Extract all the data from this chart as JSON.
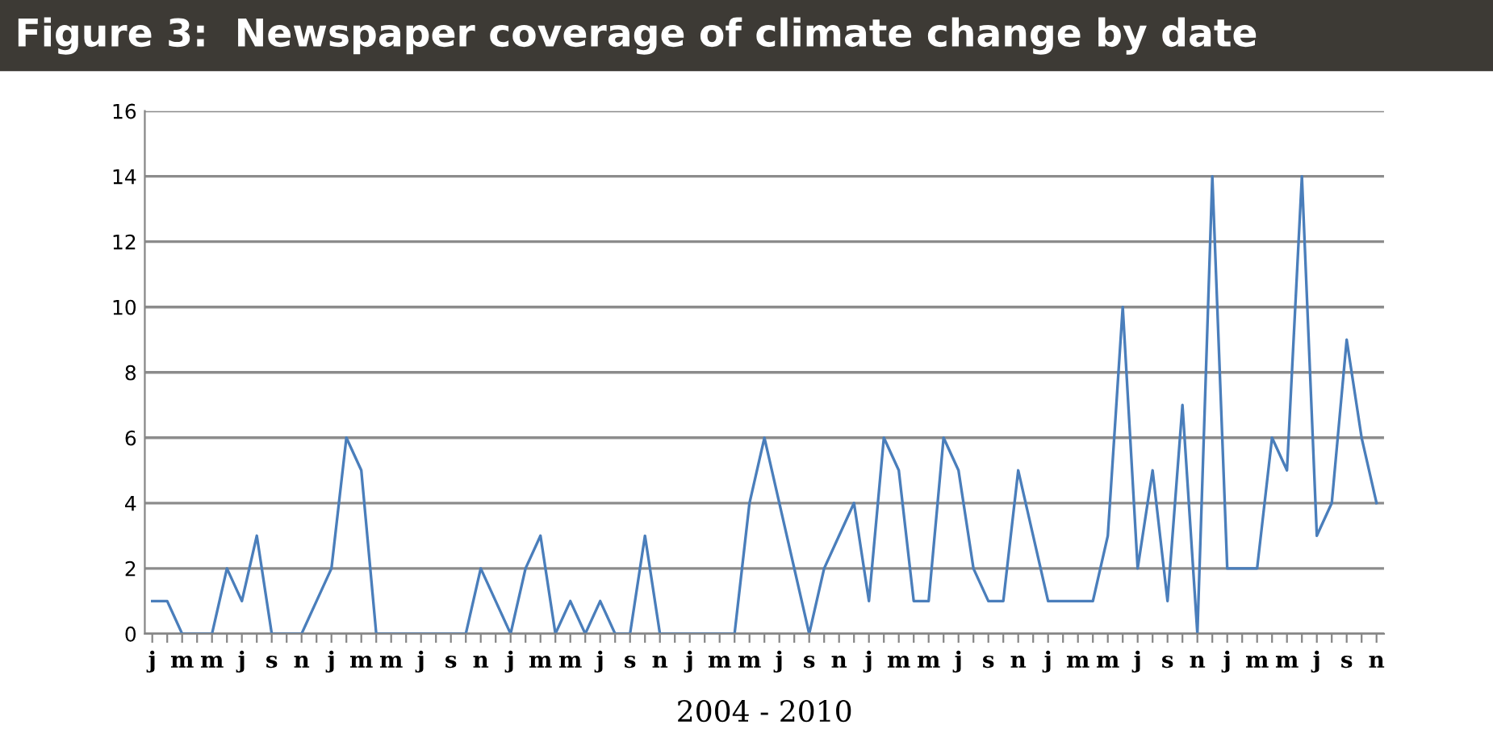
{
  "chart_data": {
    "type": "line",
    "title": "Figure 3:  Newspaper coverage of climate change by date",
    "xlabel": "2004 - 2010",
    "categories": [
      "j",
      null,
      "m",
      null,
      "m",
      null,
      "j",
      null,
      "s",
      null,
      "n",
      null,
      "j",
      null,
      "m",
      null,
      "m",
      null,
      "j",
      null,
      "s",
      null,
      "n",
      null,
      "j",
      null,
      "m",
      null,
      "m",
      null,
      "j",
      null,
      "s",
      null,
      "n",
      null,
      "j",
      null,
      "m",
      null,
      "m",
      null,
      "j",
      null,
      "s",
      null,
      "n",
      null,
      "j",
      null,
      "m",
      null,
      "m",
      null,
      "j",
      null,
      "s",
      null,
      "n",
      null,
      "j",
      null,
      "m",
      null,
      "m",
      null,
      "j",
      null,
      "s",
      null,
      "n",
      null,
      "j",
      null,
      "m",
      null,
      "m",
      null,
      "j",
      null,
      "s",
      null,
      "n"
    ],
    "series": [
      {
        "color": "#4a7ebb",
        "values": [
          1,
          1,
          0,
          0,
          0,
          2,
          1,
          3,
          0,
          0,
          0,
          1,
          2,
          6,
          5,
          0,
          0,
          0,
          0,
          0,
          0,
          0,
          2,
          1,
          0,
          2,
          3,
          0,
          1,
          0,
          1,
          0,
          0,
          3,
          0,
          0,
          0,
          0,
          0,
          0,
          4,
          6,
          4,
          2,
          0,
          2,
          3,
          4,
          1,
          6,
          5,
          1,
          1,
          6,
          5,
          2,
          1,
          1,
          5,
          3,
          1,
          1,
          1,
          1,
          3,
          10,
          2,
          5,
          1,
          7,
          0,
          14,
          2,
          2,
          2,
          6,
          5,
          14,
          3,
          4,
          9,
          6,
          4
        ]
      }
    ],
    "ylim": [
      0,
      16
    ],
    "yticks": [
      0,
      2,
      4,
      6,
      8,
      10,
      12,
      14,
      16
    ],
    "grid": "y",
    "marker": "none",
    "line_style": "solid"
  }
}
